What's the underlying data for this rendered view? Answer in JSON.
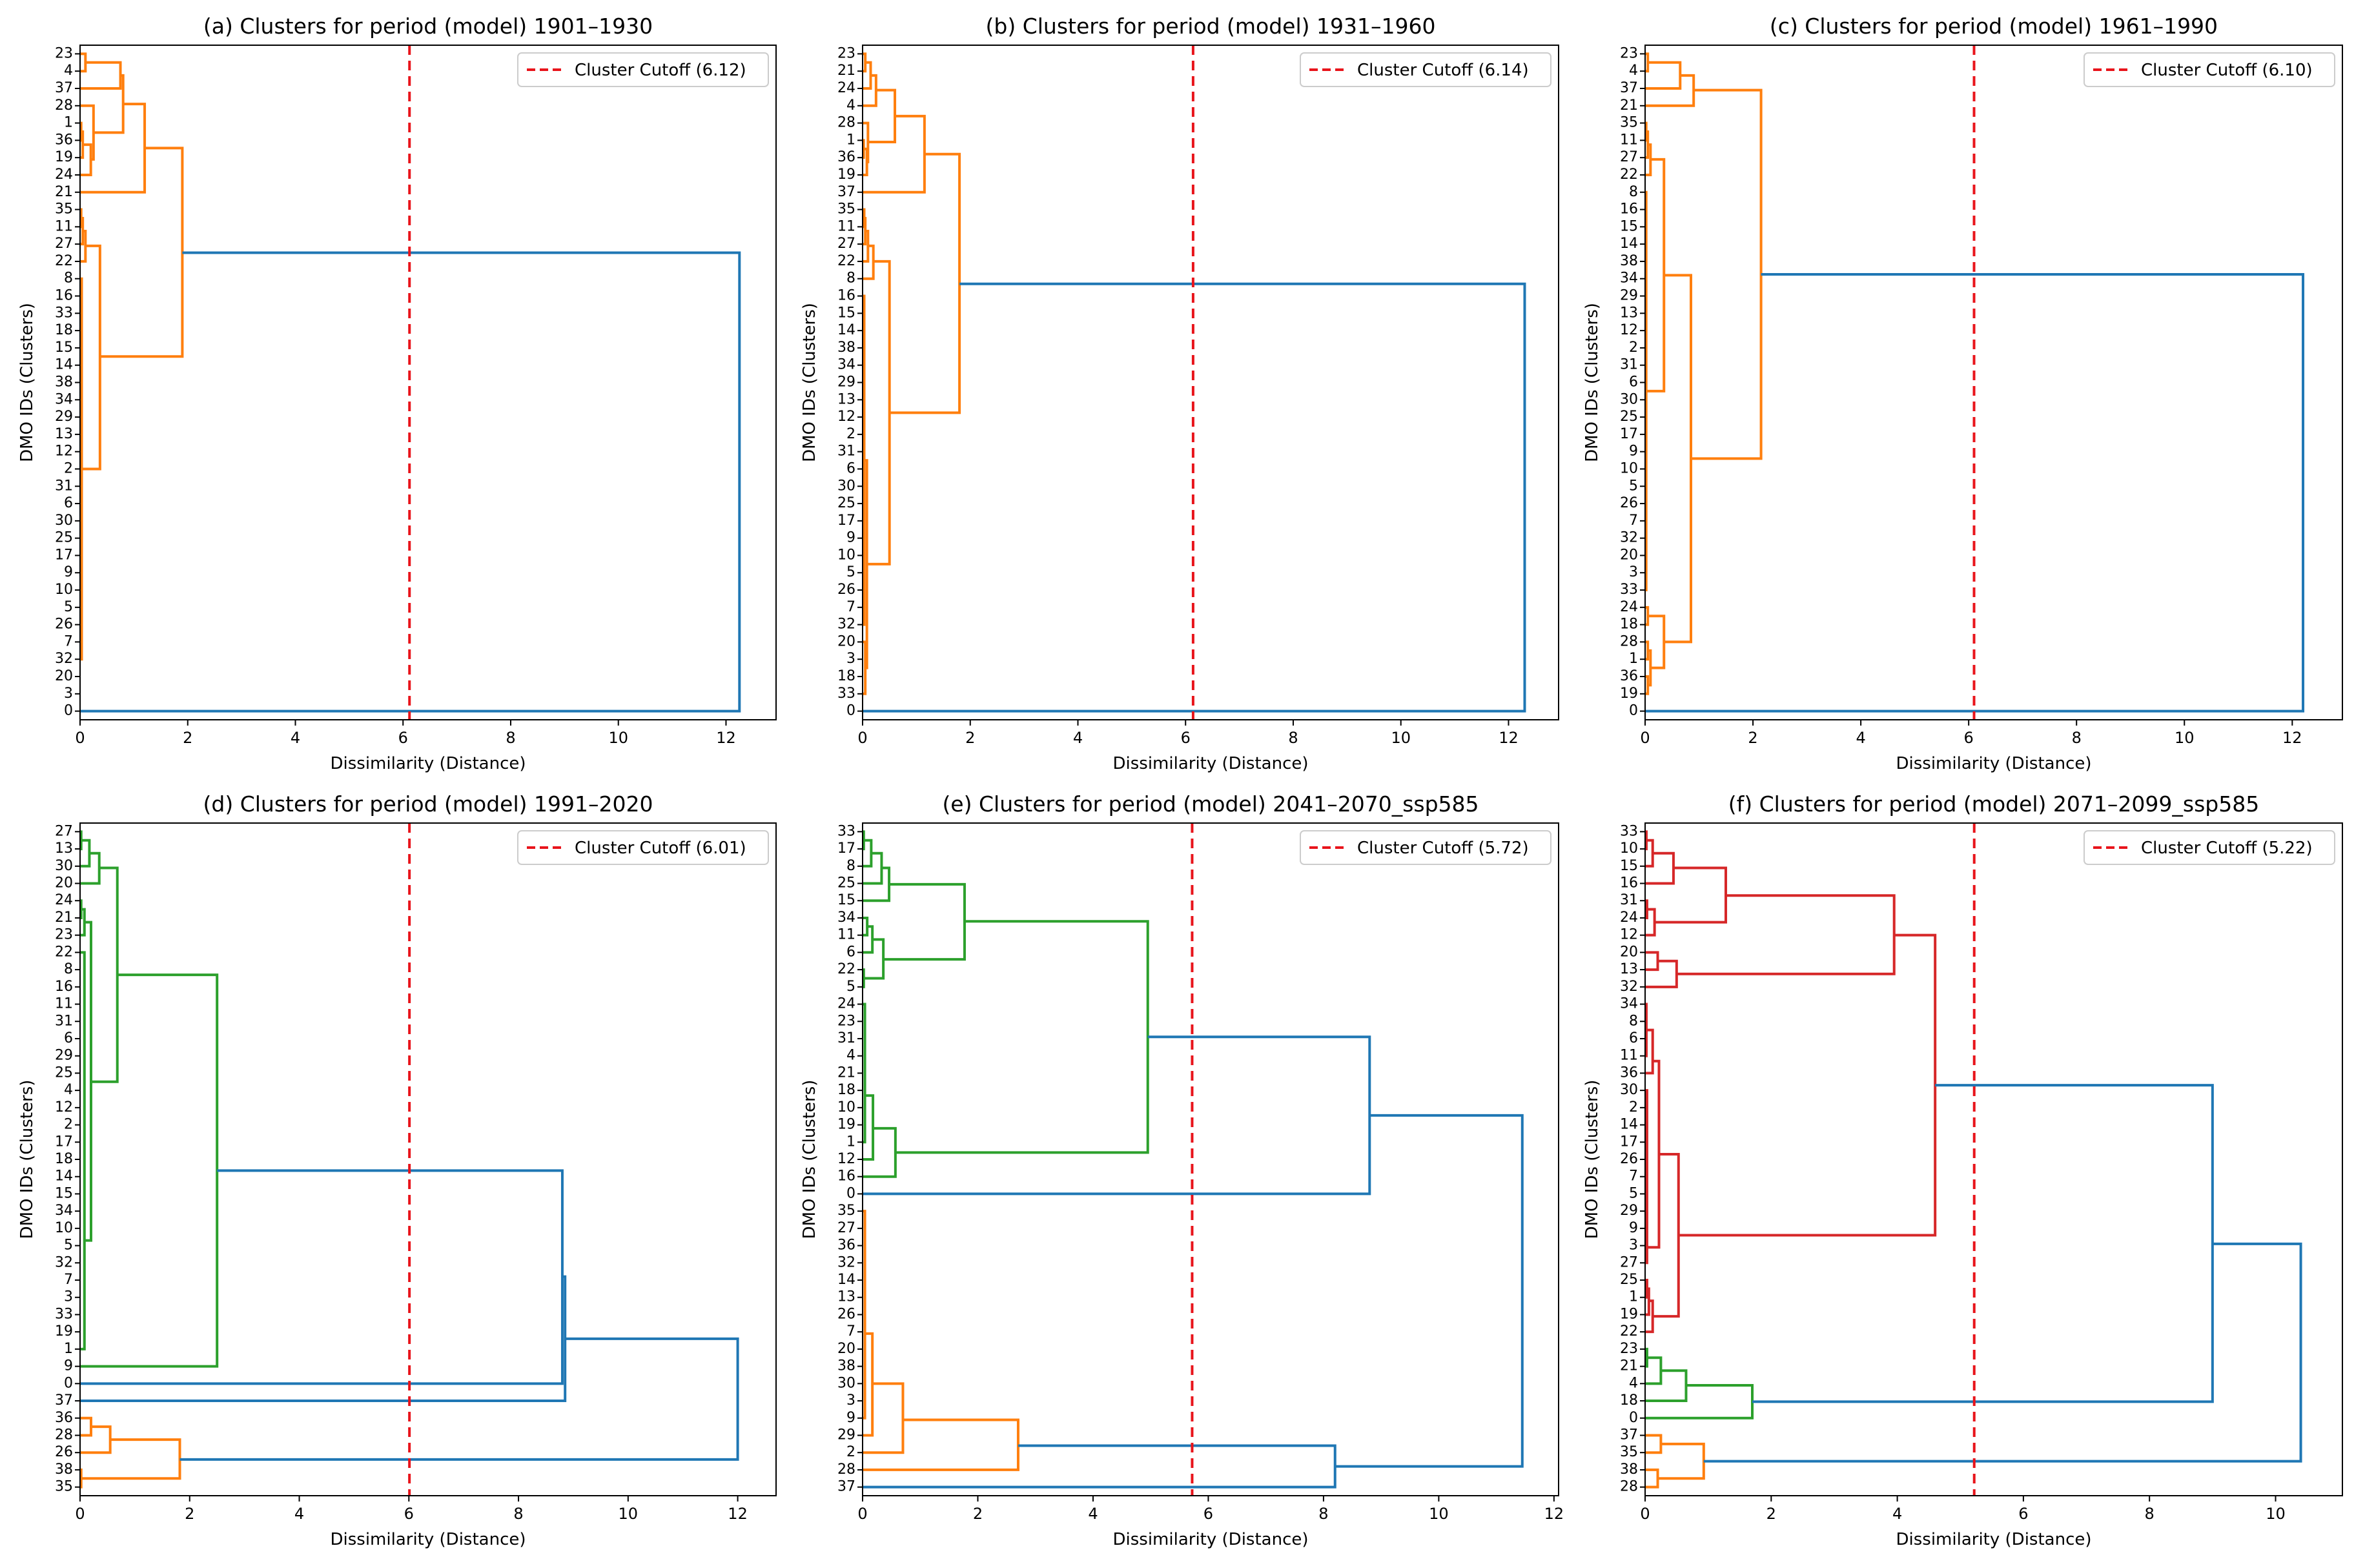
{
  "colors": {
    "C0": "#1f77b4",
    "C1": "#ff7f0e",
    "C2": "#2ca02c",
    "C3": "#d62728",
    "cutoff": "#e8141b"
  },
  "chart_data": [
    {
      "type": "dendrogram",
      "title": "(a) Clusters for period (model) 1901–1930",
      "xlabel": "Dissimilarity (Distance)",
      "ylabel": "DMO IDs (Clusters)",
      "xlim": [
        0,
        12.93
      ],
      "xticks": [
        "0",
        "2",
        "4",
        "6",
        "8",
        "10",
        "12"
      ],
      "cutoff": 6.12,
      "legend": "Cluster Cutoff (6.12)",
      "legend_position": "top-right",
      "leaves": [
        "23",
        "4",
        "37",
        "28",
        "1",
        "36",
        "19",
        "24",
        "21",
        "35",
        "11",
        "27",
        "22",
        "8",
        "16",
        "33",
        "18",
        "15",
        "14",
        "38",
        "34",
        "29",
        "13",
        "12",
        "2",
        "31",
        "6",
        "30",
        "25",
        "17",
        "9",
        "10",
        "5",
        "26",
        "7",
        "32",
        "20",
        "3",
        "0"
      ],
      "links": [
        [
          0,
          0,
          1,
          0,
          0.1,
          "C1"
        ],
        [
          0.5,
          0.1,
          2,
          0,
          0.75,
          "C1"
        ],
        [
          4,
          0,
          5,
          0,
          0.02,
          "C1"
        ],
        [
          4.5,
          0.02,
          6,
          0,
          0.05,
          "C1"
        ],
        [
          5.25,
          0.05,
          7,
          0,
          0.2,
          "C1"
        ],
        [
          3,
          0,
          6.1,
          0.2,
          0.25,
          "C1"
        ],
        [
          1.25,
          0.75,
          4.55,
          0.25,
          0.8,
          "C1"
        ],
        [
          2.9,
          0.8,
          8,
          0,
          1.2,
          "C1"
        ],
        [
          9,
          0,
          10,
          0,
          0.02,
          "C1"
        ],
        [
          9.5,
          0.02,
          11,
          0,
          0.05,
          "C1"
        ],
        [
          10.25,
          0.05,
          12,
          0,
          0.1,
          "C1"
        ],
        [
          13,
          0,
          35,
          0,
          0.03,
          "C1"
        ],
        [
          11.1,
          0.1,
          24,
          0.03,
          0.37,
          "C1"
        ],
        [
          5.45,
          1.2,
          17.5,
          0.37,
          1.9,
          "C1"
        ],
        [
          11.5,
          1.9,
          38,
          0,
          12.25,
          "C0"
        ]
      ]
    },
    {
      "type": "dendrogram",
      "title": "(b) Clusters for period (model) 1931–1960",
      "xlabel": "Dissimilarity (Distance)",
      "ylabel": "DMO IDs (Clusters)",
      "xlim": [
        0,
        12.93
      ],
      "xticks": [
        "0",
        "2",
        "4",
        "6",
        "8",
        "10",
        "12"
      ],
      "cutoff": 6.14,
      "legend": "Cluster Cutoff (6.14)",
      "legend_position": "top-right",
      "leaves": [
        "23",
        "21",
        "24",
        "4",
        "28",
        "1",
        "36",
        "19",
        "37",
        "35",
        "11",
        "27",
        "22",
        "8",
        "16",
        "15",
        "14",
        "38",
        "34",
        "29",
        "13",
        "12",
        "2",
        "31",
        "6",
        "30",
        "25",
        "17",
        "9",
        "10",
        "5",
        "26",
        "7",
        "32",
        "20",
        "3",
        "18",
        "33",
        "0"
      ],
      "links": [
        [
          0,
          0,
          1,
          0,
          0.05,
          "C1"
        ],
        [
          0.5,
          0.05,
          2,
          0,
          0.15,
          "C1"
        ],
        [
          1.25,
          0.15,
          3,
          0,
          0.25,
          "C1"
        ],
        [
          5,
          0,
          6,
          0,
          0.02,
          "C1"
        ],
        [
          5.5,
          0.02,
          7,
          0,
          0.08,
          "C1"
        ],
        [
          4,
          0,
          6.25,
          0.08,
          0.1,
          "C1"
        ],
        [
          2.1,
          0.25,
          5.1,
          0.1,
          0.6,
          "C1"
        ],
        [
          3.6,
          0.6,
          8,
          0,
          1.15,
          "C1"
        ],
        [
          9,
          0,
          10,
          0,
          0.03,
          "C1"
        ],
        [
          9.5,
          0.03,
          11,
          0,
          0.05,
          "C1"
        ],
        [
          10.25,
          0.05,
          12,
          0,
          0.1,
          "C1"
        ],
        [
          11.1,
          0.1,
          13,
          0,
          0.2,
          "C1"
        ],
        [
          14,
          0,
          33,
          0,
          0.03,
          "C1"
        ],
        [
          34,
          0,
          37,
          0,
          0.05,
          "C1"
        ],
        [
          23.5,
          0.03,
          35.5,
          0.05,
          0.08,
          "C1"
        ],
        [
          12,
          0.2,
          29.5,
          0.08,
          0.5,
          "C1"
        ],
        [
          5.8,
          1.15,
          20.75,
          0.5,
          1.8,
          "C1"
        ],
        [
          13.3,
          1.8,
          38,
          0,
          12.3,
          "C0"
        ]
      ]
    },
    {
      "type": "dendrogram",
      "title": "(c) Clusters for period (model) 1961–1990",
      "xlabel": "Dissimilarity (Distance)",
      "ylabel": "DMO IDs (Clusters)",
      "xlim": [
        0,
        12.93
      ],
      "xticks": [
        "0",
        "2",
        "4",
        "6",
        "8",
        "10",
        "12"
      ],
      "cutoff": 6.1,
      "legend": "Cluster Cutoff (6.10)",
      "legend_position": "top-right",
      "leaves": [
        "23",
        "4",
        "37",
        "21",
        "35",
        "11",
        "27",
        "22",
        "8",
        "16",
        "15",
        "14",
        "38",
        "34",
        "29",
        "13",
        "12",
        "2",
        "31",
        "6",
        "30",
        "25",
        "17",
        "9",
        "10",
        "5",
        "26",
        "7",
        "32",
        "20",
        "3",
        "33",
        "24",
        "18",
        "28",
        "1",
        "36",
        "19",
        "0"
      ],
      "links": [
        [
          0,
          0,
          1,
          0,
          0.05,
          "C1"
        ],
        [
          0.5,
          0.05,
          2,
          0,
          0.65,
          "C1"
        ],
        [
          1.25,
          0.65,
          3,
          0,
          0.9,
          "C1"
        ],
        [
          4,
          0,
          5,
          0,
          0.02,
          "C1"
        ],
        [
          4.5,
          0.02,
          6,
          0,
          0.05,
          "C1"
        ],
        [
          5.25,
          0.05,
          7,
          0,
          0.1,
          "C1"
        ],
        [
          8,
          0,
          31,
          0,
          0.02,
          "C1"
        ],
        [
          6.1,
          0.1,
          19.5,
          0.02,
          0.35,
          "C1"
        ],
        [
          32,
          0,
          33,
          0,
          0.05,
          "C1"
        ],
        [
          34,
          0,
          35,
          0,
          0.05,
          "C1"
        ],
        [
          36,
          0,
          37,
          0,
          0.05,
          "C1"
        ],
        [
          34.5,
          0.05,
          36.5,
          0.05,
          0.1,
          "C1"
        ],
        [
          32.5,
          0.05,
          35.5,
          0.1,
          0.35,
          "C1"
        ],
        [
          12.8,
          0.35,
          34,
          0.35,
          0.85,
          "C1"
        ],
        [
          2.1,
          0.9,
          23.4,
          0.85,
          2.15,
          "C1"
        ],
        [
          12.75,
          2.15,
          38,
          0,
          12.2,
          "C0"
        ]
      ]
    },
    {
      "type": "dendrogram",
      "title": "(d) Clusters for period (model) 1991–2020",
      "xlabel": "Dissimilarity (Distance)",
      "ylabel": "DMO IDs (Clusters)",
      "xlim": [
        0,
        12.7
      ],
      "xticks": [
        "0",
        "2",
        "4",
        "6",
        "8",
        "10",
        "12"
      ],
      "cutoff": 6.01,
      "legend": "Cluster Cutoff (6.01)",
      "legend_position": "top-right",
      "leaves": [
        "27",
        "13",
        "30",
        "20",
        "24",
        "21",
        "23",
        "22",
        "8",
        "16",
        "11",
        "31",
        "6",
        "29",
        "25",
        "4",
        "12",
        "2",
        "17",
        "18",
        "14",
        "15",
        "34",
        "10",
        "5",
        "32",
        "7",
        "3",
        "33",
        "19",
        "1",
        "9",
        "0",
        "37",
        "36",
        "28",
        "26",
        "38",
        "35"
      ],
      "links": [
        [
          0,
          0,
          1,
          0,
          0.02,
          "C2"
        ],
        [
          0.5,
          0.02,
          2,
          0,
          0.17,
          "C2"
        ],
        [
          1.25,
          0.17,
          3,
          0,
          0.35,
          "C2"
        ],
        [
          4,
          0,
          5,
          0,
          0.02,
          "C2"
        ],
        [
          4.5,
          0.02,
          6,
          0,
          0.08,
          "C2"
        ],
        [
          7,
          0,
          30,
          0,
          0.08,
          "C2"
        ],
        [
          5.25,
          0.08,
          23.7,
          0.08,
          0.2,
          "C2"
        ],
        [
          2.1,
          0.35,
          14.5,
          0.2,
          0.68,
          "C2"
        ],
        [
          8.3,
          0.68,
          31,
          0,
          2.5,
          "C2"
        ],
        [
          19.65,
          2.5,
          32,
          0,
          8.8,
          "C0"
        ],
        [
          25.8,
          8.8,
          33,
          0,
          8.85,
          "C0"
        ],
        [
          34,
          0,
          35,
          0,
          0.2,
          "C1"
        ],
        [
          34.5,
          0.2,
          36,
          0,
          0.55,
          "C1"
        ],
        [
          37,
          0,
          38,
          0,
          0.02,
          "C1"
        ],
        [
          35.25,
          0.55,
          37.5,
          0.02,
          1.82,
          "C1"
        ],
        [
          29.4,
          8.85,
          36.4,
          1.82,
          12.0,
          "C0"
        ]
      ]
    },
    {
      "type": "dendrogram",
      "title": "(e) Clusters for period (model) 2041–2070_ssp585",
      "xlabel": "Dissimilarity (Distance)",
      "ylabel": "DMO IDs (Clusters)",
      "xlim": [
        0,
        12.08
      ],
      "xticks": [
        "0",
        "2",
        "4",
        "6",
        "8",
        "10",
        "12"
      ],
      "cutoff": 5.72,
      "legend": "Cluster Cutoff (5.72)",
      "legend_position": "top-right",
      "leaves": [
        "33",
        "17",
        "8",
        "25",
        "15",
        "34",
        "11",
        "6",
        "22",
        "5",
        "24",
        "23",
        "31",
        "4",
        "21",
        "18",
        "10",
        "19",
        "1",
        "12",
        "16",
        "0",
        "35",
        "27",
        "36",
        "32",
        "14",
        "13",
        "26",
        "7",
        "20",
        "38",
        "30",
        "3",
        "9",
        "29",
        "2",
        "28",
        "37"
      ],
      "links": [
        [
          0,
          0,
          1,
          0,
          0.02,
          "C2"
        ],
        [
          0.5,
          0.02,
          2,
          0,
          0.15,
          "C2"
        ],
        [
          1.25,
          0.15,
          3,
          0,
          0.33,
          "C2"
        ],
        [
          2.1,
          0.33,
          4,
          0,
          0.46,
          "C2"
        ],
        [
          5,
          0,
          6,
          0,
          0.08,
          "C2"
        ],
        [
          5.5,
          0.08,
          7,
          0,
          0.17,
          "C2"
        ],
        [
          8,
          0,
          9,
          0,
          0.02,
          "C2"
        ],
        [
          6.25,
          0.17,
          8.5,
          0.02,
          0.36,
          "C2"
        ],
        [
          3.05,
          0.46,
          7.4,
          0.36,
          1.77,
          "C2"
        ],
        [
          10,
          0,
          18,
          0,
          0.04,
          "C2"
        ],
        [
          15.3,
          0.04,
          19,
          0,
          0.18,
          "C2"
        ],
        [
          17.2,
          0.18,
          20,
          0,
          0.57,
          "C2"
        ],
        [
          5.2,
          1.77,
          18.6,
          0.57,
          4.95,
          "C2"
        ],
        [
          11.9,
          4.95,
          21,
          0,
          8.8,
          "C0"
        ],
        [
          22,
          0,
          34,
          0,
          0.04,
          "C1"
        ],
        [
          29.1,
          0.04,
          35,
          0,
          0.17,
          "C1"
        ],
        [
          32,
          0.17,
          36,
          0,
          0.7,
          "C1"
        ],
        [
          34.1,
          0.7,
          37,
          0,
          2.7,
          "C1"
        ],
        [
          35.6,
          2.7,
          38,
          0,
          8.2,
          "C0"
        ],
        [
          16.45,
          8.8,
          36.8,
          8.2,
          11.45,
          "C0"
        ]
      ]
    },
    {
      "type": "dendrogram",
      "title": "(f) Clusters for period (model) 2071–2099_ssp585",
      "xlabel": "Dissimilarity (Distance)",
      "ylabel": "DMO IDs (Clusters)",
      "xlim": [
        0,
        11.06
      ],
      "xticks": [
        "0",
        "2",
        "4",
        "6",
        "8",
        "10"
      ],
      "cutoff": 5.22,
      "legend": "Cluster Cutoff (5.22)",
      "legend_position": "top-right",
      "leaves": [
        "33",
        "10",
        "15",
        "16",
        "31",
        "24",
        "12",
        "20",
        "13",
        "32",
        "34",
        "8",
        "6",
        "11",
        "36",
        "30",
        "2",
        "14",
        "17",
        "26",
        "7",
        "5",
        "29",
        "9",
        "3",
        "27",
        "25",
        "1",
        "19",
        "22",
        "23",
        "21",
        "4",
        "18",
        "0",
        "37",
        "35",
        "38",
        "28"
      ],
      "links": [
        [
          0,
          0,
          1,
          0,
          0.02,
          "C3"
        ],
        [
          0.5,
          0.02,
          2,
          0,
          0.12,
          "C3"
        ],
        [
          1.25,
          0.12,
          3,
          0,
          0.45,
          "C3"
        ],
        [
          4,
          0,
          5,
          0,
          0.03,
          "C3"
        ],
        [
          4.5,
          0.03,
          6,
          0,
          0.15,
          "C3"
        ],
        [
          2.1,
          0.45,
          5.25,
          0.15,
          1.28,
          "C3"
        ],
        [
          7,
          0,
          8,
          0,
          0.2,
          "C3"
        ],
        [
          7.5,
          0.2,
          9,
          0,
          0.5,
          "C3"
        ],
        [
          3.7,
          1.28,
          8.25,
          0.5,
          3.95,
          "C3"
        ],
        [
          10,
          0,
          13,
          0,
          0.02,
          "C3"
        ],
        [
          11.5,
          0.02,
          14,
          0,
          0.12,
          "C3"
        ],
        [
          15,
          0,
          25,
          0,
          0.03,
          "C3"
        ],
        [
          13.3,
          0.12,
          24.1,
          0.03,
          0.22,
          "C3"
        ],
        [
          26,
          0,
          27,
          0,
          0.03,
          "C3"
        ],
        [
          26.5,
          0.03,
          28,
          0,
          0.06,
          "C3"
        ],
        [
          27.2,
          0.06,
          29,
          0,
          0.12,
          "C3"
        ],
        [
          18.7,
          0.22,
          28.1,
          0.12,
          0.53,
          "C3"
        ],
        [
          6,
          3.95,
          23.4,
          0.53,
          4.6,
          "C3"
        ],
        [
          30,
          0,
          31,
          0,
          0.03,
          "C2"
        ],
        [
          30.5,
          0.03,
          32,
          0,
          0.25,
          "C2"
        ],
        [
          31.25,
          0.25,
          33,
          0,
          0.65,
          "C2"
        ],
        [
          32.1,
          0.65,
          34,
          0,
          1.7,
          "C2"
        ],
        [
          35,
          0,
          36,
          0,
          0.25,
          "C1"
        ],
        [
          37,
          0,
          38,
          0,
          0.2,
          "C1"
        ],
        [
          35.5,
          0.25,
          37.5,
          0.2,
          0.93,
          "C1"
        ],
        [
          14.7,
          4.6,
          33.05,
          1.7,
          9.0,
          "C0"
        ],
        [
          23.9,
          9.0,
          36.5,
          0.93,
          10.4,
          "C0"
        ]
      ]
    }
  ]
}
